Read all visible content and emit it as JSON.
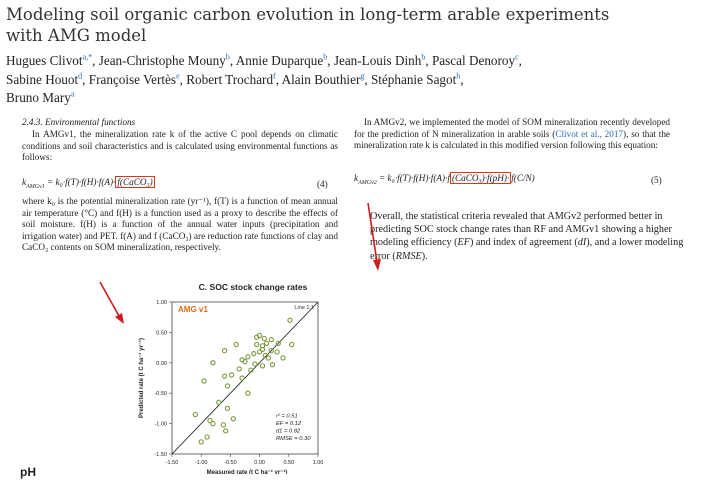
{
  "paper": {
    "title_line1": "Modeling soil organic carbon evolution in long-term arable experiments",
    "title_line2": "with AMG model",
    "authors": [
      {
        "name": "Hugues Clivot",
        "sup": "a,*",
        "sep": ", "
      },
      {
        "name": "Jean-Christophe Mouny",
        "sup": "b",
        "sep": ", "
      },
      {
        "name": "Annie Duparque",
        "sup": "b",
        "sep": ", "
      },
      {
        "name": "Jean-Louis Dinh",
        "sup": "b",
        "sep": ", "
      },
      {
        "name": "Pascal Denoroy",
        "sup": "c",
        "sep": ","
      },
      {
        "name": "Sabine Houot",
        "sup": "d",
        "sep": ", "
      },
      {
        "name": "Françoise Vertès",
        "sup": "e",
        "sep": ", "
      },
      {
        "name": "Robert Trochard",
        "sup": "f",
        "sep": ", "
      },
      {
        "name": "Alain Bouthier",
        "sup": "g",
        "sep": ", "
      },
      {
        "name": "Stéphanie Sagot",
        "sup": "h",
        "sep": ","
      },
      {
        "name": "Bruno Mary",
        "sup": "a",
        "sep": ""
      }
    ]
  },
  "left_col": {
    "section": "2.4.3. Environmental functions",
    "para1": "In AMGv1, the mineralization rate k of the active C pool depends on climatic conditions and soil characteristics and is calculated using environmental functions as follows:",
    "eq_lhs": "k",
    "eq_lhs_sub": "AMGv1",
    "eq_rhs": " = k₀·f(T)·f(H)·f(A)·",
    "eq_box": "f(CaCO₃)",
    "eq_num": "(4)",
    "para2": "where k₀ is the potential mineralization rate (yr⁻¹), f(T) is a function of mean annual air temperature (°C) and f(H) is a function used as a proxy to describe the effects of soil moisture. f(H) is a function of the annual water inputs (precipitation and irrigation water) and PET. f(A) and f (CaCO₃) are reduction rate functions of clay and CaCO₃ contents on SOM mineralization, respectively."
  },
  "right_col": {
    "para1_a": "In AMGv2, we implemented the model of SOM mineralization recently developed for the prediction of N mineralization in arable soils (",
    "para1_cite": "Clivot et al., 2017",
    "para1_b": "), so that the mineralization rate k is calculated in this modified version following this equation:",
    "eq_lhs": "k",
    "eq_lhs_sub": "AMGv2",
    "eq_rhs": " = k₀·f(T)·f(H)·f(A)·f",
    "eq_box": "(CaCO₃)·f(pH)·",
    "eq_tail": "f(C/N)",
    "eq_num": "(5)"
  },
  "note": {
    "text_a": "Overall, the statistical criteria revealed that AMGv2 performed better in predicting SOC stock change rates than RF and AMGv1 showing a higher modeling efficiency (",
    "ef": "EF",
    "text_b": ") and index of agreement (",
    "d1": "dI",
    "text_c": "), and a lower modeling error (",
    "rmse": "RMSE",
    "text_d": ")."
  },
  "chart_data": {
    "type": "scatter",
    "title": "C. SOC stock change rates",
    "model_label": "AMG v1",
    "line_label": "Line 1:1",
    "xlabel": "Measured rate (t C ha⁻¹ yr⁻¹)",
    "ylabel": "Predicted rate (t C ha⁻¹ yr⁻¹)",
    "xlim": [
      -1.5,
      1.0
    ],
    "ylim": [
      -1.5,
      1.0
    ],
    "xticks": [
      "-1.50",
      "-1.00",
      "-0.50",
      "0.00",
      "0.50",
      "1.00"
    ],
    "yticks": [
      "1.00",
      "0.50",
      "0.00",
      "-0.50",
      "-1.00",
      "-1.50"
    ],
    "stats": [
      "r² = 0.51",
      "EF = 0.12",
      "d1 = 0.82",
      "RMSE = 0.30"
    ],
    "point_color": "#7a9a3a",
    "points": [
      [
        0.52,
        0.7
      ],
      [
        0.32,
        0.32
      ],
      [
        0.0,
        0.45
      ],
      [
        -0.05,
        0.42
      ],
      [
        0.08,
        0.4
      ],
      [
        0.2,
        0.38
      ],
      [
        0.12,
        0.32
      ],
      [
        -0.05,
        0.3
      ],
      [
        0.05,
        0.28
      ],
      [
        0.2,
        0.2
      ],
      [
        0.3,
        0.18
      ],
      [
        0.05,
        0.22
      ],
      [
        0.0,
        0.18
      ],
      [
        -0.1,
        0.15
      ],
      [
        0.1,
        0.12
      ],
      [
        0.15,
        0.08
      ],
      [
        -0.2,
        0.1
      ],
      [
        -0.3,
        0.05
      ],
      [
        -0.25,
        0.02
      ],
      [
        -0.08,
        -0.02
      ],
      [
        0.05,
        -0.05
      ],
      [
        0.22,
        -0.03
      ],
      [
        -0.6,
        0.2
      ],
      [
        -0.8,
        0.0
      ],
      [
        -0.35,
        -0.1
      ],
      [
        -0.15,
        -0.12
      ],
      [
        -0.48,
        -0.2
      ],
      [
        -0.6,
        -0.22
      ],
      [
        -0.3,
        -0.25
      ],
      [
        -0.95,
        -0.3
      ],
      [
        -0.55,
        -0.38
      ],
      [
        -0.2,
        -0.5
      ],
      [
        -0.7,
        -0.65
      ],
      [
        -0.55,
        -0.75
      ],
      [
        -1.1,
        -0.85
      ],
      [
        -0.85,
        -0.95
      ],
      [
        -0.45,
        -0.92
      ],
      [
        -0.62,
        -1.02
      ],
      [
        -0.58,
        -1.12
      ],
      [
        -0.9,
        -1.22
      ],
      [
        -1.0,
        -1.3
      ],
      [
        -0.8,
        -1.0
      ],
      [
        0.4,
        0.08
      ],
      [
        -0.4,
        0.3
      ],
      [
        0.55,
        0.3
      ]
    ]
  },
  "ph_label": "pH",
  "colors": {
    "highlight_box": "#d23c1b",
    "arrow": "#d11b1b",
    "link": "#2a6db5",
    "model_label": "#e06b1a"
  }
}
